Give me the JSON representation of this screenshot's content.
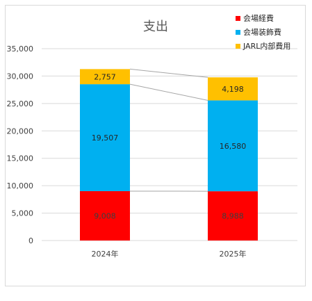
{
  "chart_data": {
    "type": "bar",
    "stacked": true,
    "title": "支出",
    "categories": [
      "2024年",
      "2025年"
    ],
    "series": [
      {
        "name": "会場経費",
        "color": "#ff0000",
        "values": [
          9008,
          8988
        ]
      },
      {
        "name": "会場装飾費",
        "color": "#00b0f0",
        "values": [
          19507,
          16580
        ]
      },
      {
        "name": "JARL内部費用",
        "color": "#ffc000",
        "values": [
          2757,
          4198
        ]
      }
    ],
    "data_labels": {
      "series_0": [
        "9,008",
        "8,988"
      ],
      "series_1": [
        "19,507",
        "16,580"
      ],
      "series_2": [
        "2,757",
        "4,198"
      ]
    },
    "yticks": [
      "0",
      "5,000",
      "10,000",
      "15,000",
      "20,000",
      "25,000",
      "30,000",
      "35,000"
    ],
    "ylim": [
      0,
      35000
    ],
    "grid": true,
    "legend_position": "top-right",
    "series_lines": true
  }
}
